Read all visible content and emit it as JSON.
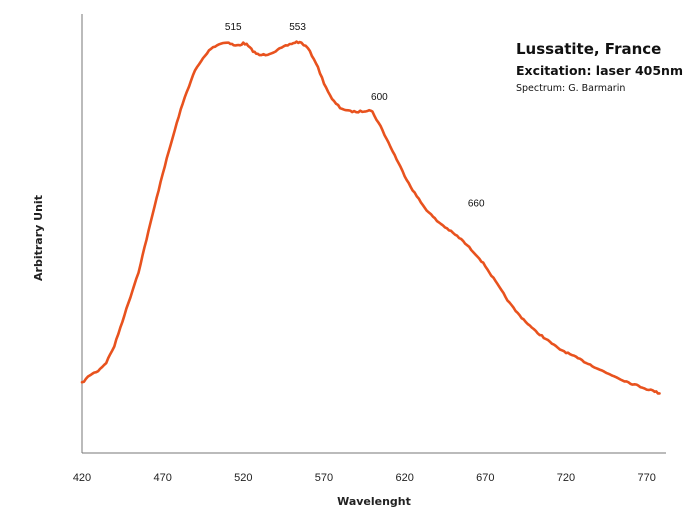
{
  "chart_data": {
    "type": "line",
    "title": "Lussatite, France",
    "subtitle": "Excitation: laser 405nm",
    "credit": "Spectrum: G. Barmarin",
    "xlabel": "Wavelenght",
    "ylabel": "Arbitrary Unit",
    "xlim": [
      420,
      782
    ],
    "ylim": [
      0,
      100
    ],
    "grid": false,
    "x_ticks": [
      "420",
      "470",
      "520",
      "570",
      "620",
      "670",
      "720",
      "770"
    ],
    "peak_labels": [
      {
        "text": "515",
        "x": 515,
        "y": 100
      },
      {
        "text": "553",
        "x": 553,
        "y": 100
      },
      {
        "text": "600",
        "x": 600,
        "y": 83
      },
      {
        "text": "660",
        "x": 660,
        "y": 57
      }
    ],
    "series": [
      {
        "color": "#e8521e",
        "x": [
          420,
          425,
          430,
          435,
          440,
          445,
          450,
          455,
          460,
          465,
          470,
          475,
          480,
          485,
          490,
          495,
          500,
          505,
          510,
          512,
          515,
          518,
          520,
          522,
          524,
          526,
          528,
          530,
          535,
          540,
          545,
          550,
          553,
          556,
          560,
          565,
          570,
          575,
          580,
          585,
          590,
          595,
          598,
          600,
          605,
          610,
          615,
          620,
          625,
          630,
          635,
          640,
          645,
          650,
          655,
          660,
          665,
          670,
          675,
          680,
          685,
          690,
          695,
          700,
          705,
          710,
          715,
          720,
          725,
          730,
          735,
          740,
          745,
          750,
          755,
          760,
          765,
          770,
          775,
          778
        ],
        "y": [
          17,
          19,
          20,
          22,
          26,
          32,
          38,
          44,
          52,
          60,
          68,
          75,
          82,
          88,
          93,
          96,
          98.5,
          99.5,
          100,
          99.6,
          99.1,
          99.3,
          99.7,
          99.4,
          98.6,
          97.8,
          97.2,
          96.8,
          97,
          97.8,
          98.8,
          99.6,
          100,
          99.8,
          98.5,
          95,
          90,
          86,
          84,
          83.2,
          83,
          83.2,
          83.5,
          83,
          79.5,
          75.5,
          71.5,
          67.5,
          64,
          61,
          58.5,
          56.5,
          55,
          53.5,
          52,
          50,
          48,
          45.5,
          42.5,
          39.5,
          36.5,
          34,
          32,
          30,
          28.5,
          27,
          25.5,
          24.5,
          23.5,
          22.5,
          21.5,
          20.5,
          19.5,
          18.7,
          17.8,
          17,
          16.3,
          15.6,
          15,
          14.5
        ]
      }
    ]
  }
}
